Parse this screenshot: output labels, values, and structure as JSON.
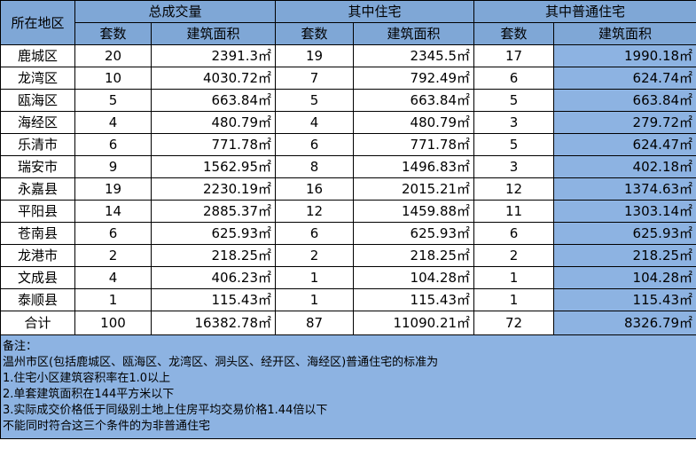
{
  "headers": {
    "region": "所在地区",
    "groups": [
      "总成交量",
      "其中住宅",
      "其中普通住宅"
    ],
    "sub_count": "套数",
    "sub_area": "建筑面积"
  },
  "rows": [
    {
      "region": "鹿城区",
      "cells": [
        "20",
        "2391.3㎡",
        "19",
        "2345.5㎡",
        "17",
        "1990.18㎡"
      ]
    },
    {
      "region": "龙湾区",
      "cells": [
        "10",
        "4030.72㎡",
        "7",
        "792.49㎡",
        "6",
        "624.74㎡"
      ]
    },
    {
      "region": "瓯海区",
      "cells": [
        "5",
        "663.84㎡",
        "5",
        "663.84㎡",
        "5",
        "663.84㎡"
      ]
    },
    {
      "region": "海经区",
      "cells": [
        "4",
        "480.79㎡",
        "4",
        "480.79㎡",
        "3",
        "279.72㎡"
      ]
    },
    {
      "region": "乐清市",
      "cells": [
        "6",
        "771.78㎡",
        "6",
        "771.78㎡",
        "5",
        "624.47㎡"
      ]
    },
    {
      "region": "瑞安市",
      "cells": [
        "9",
        "1562.95㎡",
        "8",
        "1496.83㎡",
        "3",
        "402.18㎡"
      ]
    },
    {
      "region": "永嘉县",
      "cells": [
        "19",
        "2230.19㎡",
        "16",
        "2015.21㎡",
        "12",
        "1374.63㎡"
      ]
    },
    {
      "region": "平阳县",
      "cells": [
        "14",
        "2885.37㎡",
        "12",
        "1459.88㎡",
        "11",
        "1303.14㎡"
      ]
    },
    {
      "region": "苍南县",
      "cells": [
        "6",
        "625.93㎡",
        "6",
        "625.93㎡",
        "6",
        "625.93㎡"
      ]
    },
    {
      "region": "龙港市",
      "cells": [
        "2",
        "218.25㎡",
        "2",
        "218.25㎡",
        "2",
        "218.25㎡"
      ]
    },
    {
      "region": "文成县",
      "cells": [
        "4",
        "406.23㎡",
        "1",
        "104.28㎡",
        "1",
        "104.28㎡"
      ]
    },
    {
      "region": "泰顺县",
      "cells": [
        "1",
        "115.43㎡",
        "1",
        "115.43㎡",
        "1",
        "115.43㎡"
      ]
    }
  ],
  "total": {
    "region": "合计",
    "cells": [
      "100",
      "16382.78㎡",
      "87",
      "11090.21㎡",
      "72",
      "8326.79㎡"
    ]
  },
  "notes": [
    "备注：",
    "温州市区(包括鹿城区、瓯海区、龙湾区、洞头区、经开区、海经区)普通住宅的标准为",
    "1.住宅小区建筑容积率在1.0以上",
    "2.单套建筑面积在144平方米以下",
    "3.实际成交价格低于同级别土地上住房平均交易价格1.44倍以下",
    "不能同时符合这三个条件的为非普通住宅"
  ],
  "colors": {
    "header": "#7fa7d6",
    "highlight": "#8db3e2"
  }
}
